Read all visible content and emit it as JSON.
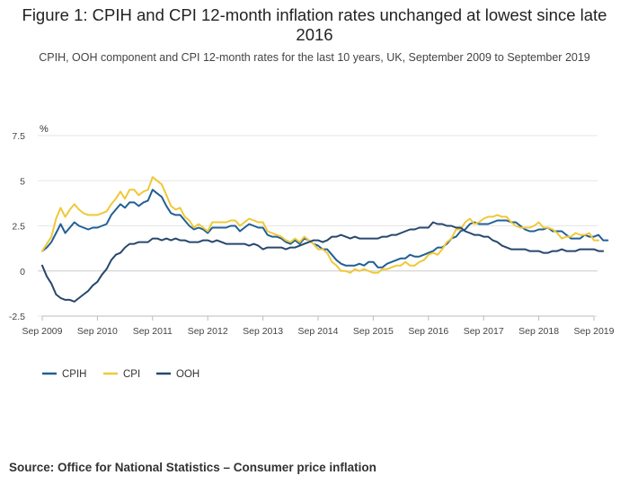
{
  "chart_data": {
    "type": "line",
    "title": "Figure 1: CPIH and CPI 12-month inflation rates unchanged at lowest since late 2016",
    "subtitle": "CPIH, OOH component and CPI 12-month rates for the last 10 years, UK, September 2009 to September 2019",
    "ylabel": "%",
    "ylim": [
      -2.5,
      7.5
    ],
    "y_ticks": [
      "7.5",
      "5",
      "2.5",
      "0",
      "-2.5"
    ],
    "x_ticks": [
      "Sep 2009",
      "Sep 2010",
      "Sep 2011",
      "Sep 2012",
      "Sep 2013",
      "Sep 2014",
      "Sep 2015",
      "Sep 2016",
      "Sep 2017",
      "Sep 2018",
      "Sep 2019"
    ],
    "x_range_months": [
      0,
      120
    ],
    "grid": true,
    "legend_position": "bottom-left",
    "series": [
      {
        "name": "CPIH",
        "color": "#206095",
        "values": [
          1.1,
          1.3,
          1.6,
          2.1,
          2.6,
          2.1,
          2.4,
          2.7,
          2.5,
          2.4,
          2.3,
          2.4,
          2.4,
          2.5,
          2.6,
          3.1,
          3.4,
          3.7,
          3.5,
          3.8,
          3.8,
          3.6,
          3.8,
          3.9,
          4.5,
          4.3,
          4.1,
          3.6,
          3.2,
          3.1,
          3.1,
          2.8,
          2.5,
          2.3,
          2.4,
          2.3,
          2.1,
          2.4,
          2.4,
          2.4,
          2.4,
          2.5,
          2.5,
          2.2,
          2.4,
          2.6,
          2.5,
          2.4,
          2.4,
          2.0,
          1.9,
          1.9,
          1.8,
          1.6,
          1.5,
          1.7,
          1.5,
          1.8,
          1.7,
          1.5,
          1.4,
          1.2,
          1.2,
          0.9,
          0.6,
          0.4,
          0.3,
          0.3,
          0.3,
          0.4,
          0.3,
          0.5,
          0.5,
          0.2,
          0.2,
          0.4,
          0.5,
          0.6,
          0.7,
          0.7,
          0.9,
          0.8,
          0.8,
          0.9,
          1.0,
          1.1,
          1.3,
          1.3,
          1.5,
          1.8,
          1.9,
          2.2,
          2.3,
          2.6,
          2.7,
          2.6,
          2.6,
          2.6,
          2.7,
          2.8,
          2.8,
          2.8,
          2.7,
          2.7,
          2.5,
          2.3,
          2.2,
          2.2,
          2.3,
          2.3,
          2.4,
          2.2,
          2.2,
          2.2,
          2.0,
          1.8,
          1.8,
          1.8,
          2.0,
          1.9,
          1.9,
          2.0,
          1.7,
          1.7
        ]
      },
      {
        "name": "CPI",
        "color": "#f0c838",
        "values": [
          1.1,
          1.5,
          1.9,
          2.9,
          3.5,
          3.0,
          3.4,
          3.7,
          3.4,
          3.2,
          3.1,
          3.1,
          3.1,
          3.2,
          3.3,
          3.7,
          4.0,
          4.4,
          4.0,
          4.5,
          4.5,
          4.2,
          4.4,
          4.5,
          5.2,
          5.0,
          4.8,
          4.2,
          3.6,
          3.4,
          3.5,
          3.0,
          2.8,
          2.4,
          2.6,
          2.4,
          2.2,
          2.7,
          2.7,
          2.7,
          2.7,
          2.8,
          2.8,
          2.5,
          2.7,
          2.9,
          2.8,
          2.7,
          2.7,
          2.2,
          2.1,
          2.0,
          1.9,
          1.7,
          1.6,
          1.8,
          1.6,
          1.9,
          1.7,
          1.5,
          1.2,
          1.2,
          1.0,
          0.5,
          0.3,
          0.0,
          0.0,
          -0.1,
          0.1,
          0.0,
          0.1,
          0.0,
          -0.1,
          -0.1,
          0.1,
          0.1,
          0.2,
          0.3,
          0.3,
          0.5,
          0.3,
          0.3,
          0.5,
          0.6,
          0.9,
          1.0,
          0.9,
          1.2,
          1.6,
          1.8,
          2.3,
          2.3,
          2.7,
          2.9,
          2.6,
          2.7,
          2.9,
          3.0,
          3.0,
          3.1,
          3.0,
          3.0,
          2.7,
          2.5,
          2.4,
          2.4,
          2.4,
          2.5,
          2.7,
          2.4,
          2.4,
          2.3,
          2.1,
          1.8,
          1.9,
          1.9,
          2.1,
          2.0,
          2.0,
          2.1,
          1.7,
          1.7
        ]
      },
      {
        "name": "OOH",
        "color": "#27476e",
        "values": [
          0.3,
          -0.3,
          -0.7,
          -1.3,
          -1.5,
          -1.6,
          -1.6,
          -1.7,
          -1.5,
          -1.3,
          -1.1,
          -0.8,
          -0.6,
          -0.2,
          0.1,
          0.6,
          0.9,
          1.0,
          1.3,
          1.5,
          1.5,
          1.6,
          1.6,
          1.6,
          1.8,
          1.8,
          1.7,
          1.8,
          1.7,
          1.8,
          1.7,
          1.7,
          1.6,
          1.6,
          1.6,
          1.7,
          1.7,
          1.6,
          1.7,
          1.6,
          1.5,
          1.5,
          1.5,
          1.5,
          1.5,
          1.4,
          1.5,
          1.4,
          1.2,
          1.3,
          1.3,
          1.3,
          1.3,
          1.2,
          1.3,
          1.3,
          1.4,
          1.5,
          1.6,
          1.7,
          1.7,
          1.6,
          1.7,
          1.9,
          1.9,
          2.0,
          1.9,
          1.8,
          1.9,
          1.8,
          1.8,
          1.8,
          1.8,
          1.8,
          1.9,
          1.9,
          2.0,
          2.0,
          2.1,
          2.2,
          2.3,
          2.3,
          2.4,
          2.4,
          2.4,
          2.7,
          2.6,
          2.6,
          2.5,
          2.5,
          2.4,
          2.4,
          2.2,
          2.1,
          2.0,
          2.0,
          1.9,
          1.9,
          1.7,
          1.6,
          1.4,
          1.3,
          1.2,
          1.2,
          1.2,
          1.2,
          1.1,
          1.1,
          1.1,
          1.0,
          1.0,
          1.1,
          1.1,
          1.2,
          1.1,
          1.1,
          1.1,
          1.2,
          1.2,
          1.2,
          1.2,
          1.1,
          1.1
        ]
      }
    ]
  },
  "source_text": "Source: Office for National Statistics – Consumer price inflation"
}
